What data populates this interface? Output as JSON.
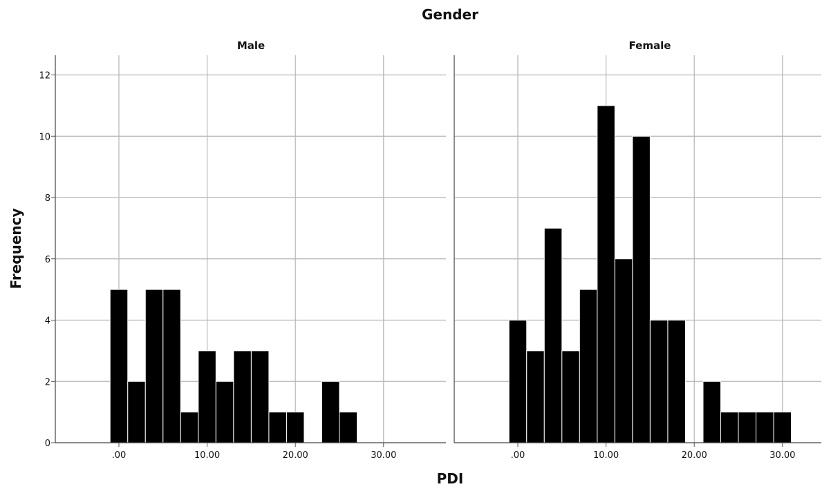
{
  "chart_data": {
    "type": "bar",
    "title": "Gender",
    "xlabel": "PDI",
    "ylabel": "Frequency",
    "ylim": [
      0,
      12
    ],
    "yticks": [
      "0",
      "2",
      "4",
      "6",
      "8",
      "10",
      "12"
    ],
    "xlim": [
      -7,
      35
    ],
    "xticks": [
      ".00",
      "10.00",
      "20.00",
      "30.00"
    ],
    "xtick_values": [
      0,
      10,
      20,
      30
    ],
    "bin_width": 2,
    "grid": true,
    "panels": [
      {
        "name": "Male",
        "bin_starts": [
          -1,
          1,
          3,
          5,
          7,
          9,
          11,
          13,
          15,
          17,
          19,
          21,
          23,
          25
        ],
        "values": [
          5,
          2,
          5,
          5,
          1,
          3,
          2,
          3,
          3,
          1,
          1,
          0,
          2,
          1
        ]
      },
      {
        "name": "Female",
        "bin_starts": [
          -1,
          1,
          3,
          5,
          7,
          9,
          11,
          13,
          15,
          17,
          19,
          21,
          23,
          25,
          27,
          29
        ],
        "values": [
          4,
          3,
          7,
          3,
          5,
          11,
          6,
          10,
          4,
          4,
          0,
          2,
          1,
          1,
          1,
          1
        ]
      }
    ]
  }
}
